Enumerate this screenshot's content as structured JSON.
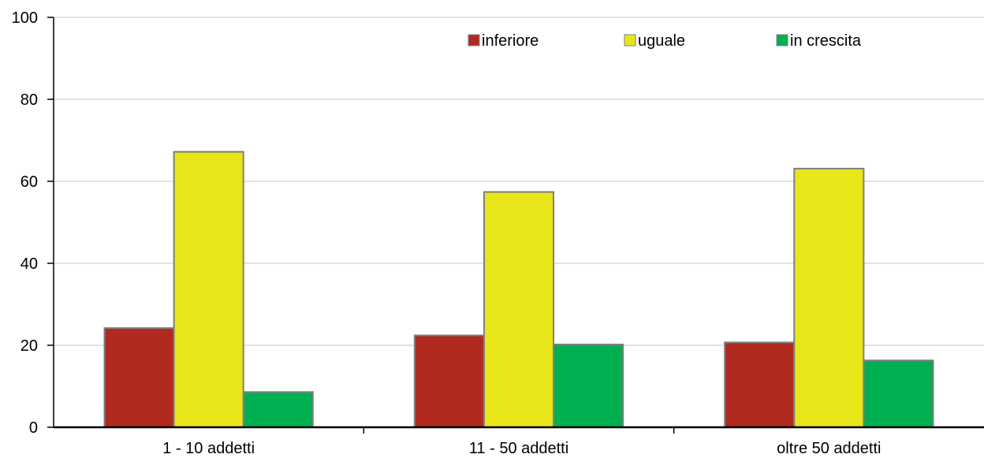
{
  "chart_data": {
    "type": "bar",
    "categories": [
      "1 - 10 addetti",
      "11 - 50 addetti",
      "oltre 50 addetti"
    ],
    "series": [
      {
        "name": "inferiore",
        "values": [
          24.2,
          22.4,
          20.7
        ],
        "color": "#b02a1f"
      },
      {
        "name": "uguale",
        "values": [
          67.2,
          57.4,
          63.1
        ],
        "color": "#e8e619"
      },
      {
        "name": "in crescita",
        "values": [
          8.6,
          20.2,
          16.3
        ],
        "color": "#00b050"
      }
    ],
    "ylim": [
      0,
      100
    ],
    "yticks": [
      0,
      20,
      40,
      60,
      80,
      100
    ],
    "grid": true,
    "legend_position": "top-right",
    "title": "",
    "xlabel": "",
    "ylabel": ""
  }
}
